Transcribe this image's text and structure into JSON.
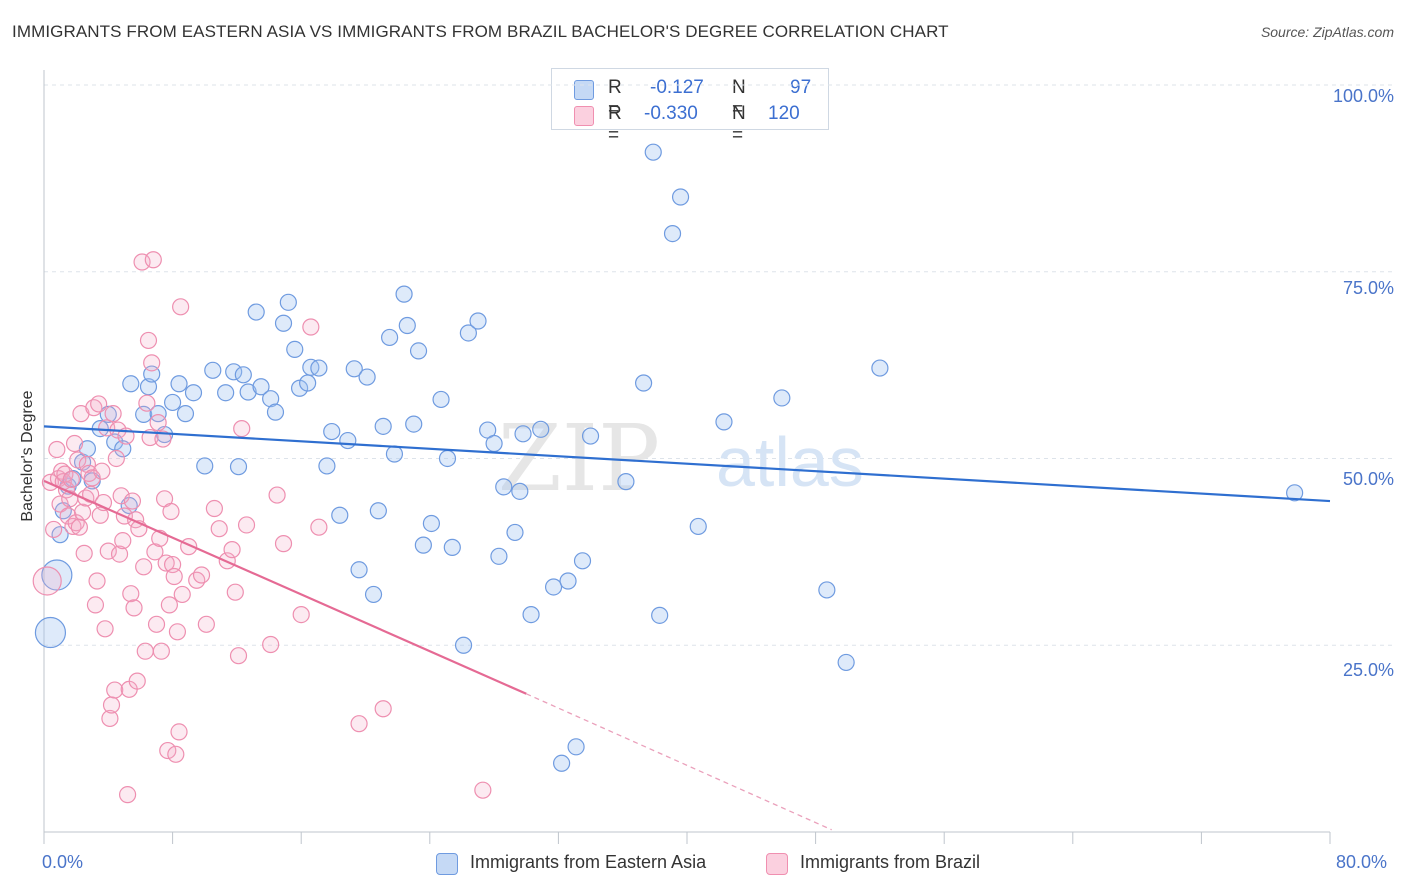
{
  "title": "IMMIGRANTS FROM EASTERN ASIA VS IMMIGRANTS FROM BRAZIL BACHELOR'S DEGREE CORRELATION CHART",
  "source": "Source: ZipAtlas.com",
  "watermark": {
    "zip": "ZIP",
    "atlas": "atlas"
  },
  "legend": {
    "rows": [
      {
        "r_label": "R =",
        "r_value": "-0.127",
        "n_label": "N =",
        "n_value": "97",
        "color": "#6f9be0"
      },
      {
        "r_label": "R =",
        "r_value": "-0.330",
        "n_label": "N =",
        "n_value": "120",
        "color": "#f08fb0"
      }
    ]
  },
  "bottom_legend": [
    "Immigrants from Eastern Asia",
    "Immigrants from Brazil"
  ],
  "chart_data": {
    "type": "scatter",
    "title": "IMMIGRANTS FROM EASTERN ASIA VS IMMIGRANTS FROM BRAZIL BACHELOR'S DEGREE CORRELATION CHART",
    "xlabel": "",
    "ylabel": "Bachelor's Degree",
    "xlim": [
      0,
      80
    ],
    "ylim": [
      0,
      102
    ],
    "x_tick_labels": [
      "0.0%",
      "80.0%"
    ],
    "y_tick_labels": [
      "100.0%",
      "75.0%",
      "50.0%",
      "25.0%"
    ],
    "y_ticks": [
      100,
      75,
      50,
      25
    ],
    "grid": true,
    "legend_position": "top-center",
    "colors": {
      "eastern_asia": "#4a7fd4",
      "brazil": "#e8729c"
    },
    "series": [
      {
        "name": "Immigrants from Eastern Asia",
        "trend": {
          "x0": 0.0,
          "y0": 54.3,
          "x1": 80.0,
          "y1": 44.3
        },
        "points": [
          [
            0.4,
            26.7
          ],
          [
            0.8,
            34.4
          ],
          [
            1.0,
            39.8
          ],
          [
            1.2,
            43.0
          ],
          [
            1.5,
            46.3
          ],
          [
            1.8,
            47.3
          ],
          [
            2.4,
            49.5
          ],
          [
            2.7,
            51.3
          ],
          [
            3.0,
            47.0
          ],
          [
            3.5,
            54.0
          ],
          [
            4.0,
            55.9
          ],
          [
            4.4,
            52.2
          ],
          [
            4.9,
            51.3
          ],
          [
            5.3,
            43.7
          ],
          [
            5.4,
            60.0
          ],
          [
            6.2,
            55.9
          ],
          [
            6.5,
            59.6
          ],
          [
            6.7,
            61.3
          ],
          [
            7.1,
            56.0
          ],
          [
            7.5,
            53.2
          ],
          [
            8.0,
            57.5
          ],
          [
            8.4,
            60.0
          ],
          [
            8.8,
            56.0
          ],
          [
            9.3,
            58.8
          ],
          [
            10.0,
            49.0
          ],
          [
            10.5,
            61.8
          ],
          [
            11.3,
            58.8
          ],
          [
            11.8,
            61.6
          ],
          [
            12.1,
            48.9
          ],
          [
            12.4,
            61.2
          ],
          [
            12.7,
            58.9
          ],
          [
            13.2,
            69.6
          ],
          [
            13.5,
            59.6
          ],
          [
            14.1,
            58.0
          ],
          [
            14.4,
            56.2
          ],
          [
            14.9,
            68.1
          ],
          [
            15.2,
            70.9
          ],
          [
            15.6,
            64.6
          ],
          [
            15.9,
            59.4
          ],
          [
            16.4,
            60.1
          ],
          [
            16.6,
            62.2
          ],
          [
            17.1,
            62.1
          ],
          [
            17.6,
            49.0
          ],
          [
            17.9,
            53.6
          ],
          [
            18.4,
            42.4
          ],
          [
            18.9,
            52.4
          ],
          [
            19.3,
            62.0
          ],
          [
            19.6,
            35.1
          ],
          [
            20.1,
            60.9
          ],
          [
            20.5,
            31.8
          ],
          [
            20.8,
            43.0
          ],
          [
            21.1,
            54.3
          ],
          [
            21.5,
            66.2
          ],
          [
            21.8,
            50.6
          ],
          [
            22.4,
            72.0
          ],
          [
            22.6,
            67.8
          ],
          [
            23.0,
            54.6
          ],
          [
            23.3,
            64.4
          ],
          [
            23.6,
            38.4
          ],
          [
            24.1,
            41.3
          ],
          [
            24.7,
            57.9
          ],
          [
            25.1,
            50.0
          ],
          [
            25.4,
            38.1
          ],
          [
            26.1,
            25.0
          ],
          [
            26.4,
            66.8
          ],
          [
            27.0,
            68.4
          ],
          [
            27.6,
            53.8
          ],
          [
            28.0,
            52.0
          ],
          [
            28.3,
            36.9
          ],
          [
            28.6,
            46.2
          ],
          [
            29.3,
            40.1
          ],
          [
            29.6,
            45.6
          ],
          [
            29.8,
            53.3
          ],
          [
            30.3,
            29.1
          ],
          [
            30.9,
            53.9
          ],
          [
            31.7,
            32.8
          ],
          [
            32.2,
            9.2
          ],
          [
            32.6,
            33.6
          ],
          [
            33.1,
            11.4
          ],
          [
            33.5,
            36.3
          ],
          [
            34.0,
            53.0
          ],
          [
            36.2,
            46.9
          ],
          [
            37.3,
            60.1
          ],
          [
            37.9,
            91.0
          ],
          [
            38.3,
            29.0
          ],
          [
            39.1,
            80.1
          ],
          [
            39.6,
            85.0
          ],
          [
            40.7,
            40.9
          ],
          [
            42.3,
            54.9
          ],
          [
            45.9,
            58.1
          ],
          [
            48.7,
            32.4
          ],
          [
            49.9,
            22.7
          ],
          [
            52.0,
            62.1
          ],
          [
            77.8,
            45.4
          ]
        ]
      },
      {
        "name": "Immigrants from Brazil",
        "trend": {
          "x0": 0.0,
          "y0": 47.0,
          "x1": 30.0,
          "y1": 18.5,
          "dash_to_x": 49.0,
          "dash_to_y": 0.3
        },
        "points": [
          [
            0.2,
            33.6
          ],
          [
            0.4,
            46.8
          ],
          [
            0.6,
            40.5
          ],
          [
            0.8,
            51.2
          ],
          [
            0.9,
            47.3
          ],
          [
            1.0,
            43.9
          ],
          [
            1.1,
            48.3
          ],
          [
            1.2,
            46.9
          ],
          [
            1.3,
            47.9
          ],
          [
            1.4,
            45.8
          ],
          [
            1.5,
            42.3
          ],
          [
            1.6,
            44.6
          ],
          [
            1.7,
            47.2
          ],
          [
            1.8,
            40.9
          ],
          [
            1.9,
            52.0
          ],
          [
            2.0,
            41.4
          ],
          [
            2.1,
            49.8
          ],
          [
            2.2,
            40.8
          ],
          [
            2.3,
            56.0
          ],
          [
            2.4,
            42.8
          ],
          [
            2.5,
            37.3
          ],
          [
            2.6,
            44.7
          ],
          [
            2.7,
            49.2
          ],
          [
            2.8,
            48.0
          ],
          [
            2.9,
            45.2
          ],
          [
            3.0,
            47.4
          ],
          [
            3.1,
            56.8
          ],
          [
            3.2,
            30.4
          ],
          [
            3.3,
            33.6
          ],
          [
            3.4,
            57.3
          ],
          [
            3.5,
            42.4
          ],
          [
            3.6,
            48.3
          ],
          [
            3.7,
            44.1
          ],
          [
            3.8,
            27.2
          ],
          [
            3.9,
            54.1
          ],
          [
            4.0,
            37.6
          ],
          [
            4.1,
            15.2
          ],
          [
            4.2,
            17.0
          ],
          [
            4.3,
            56.0
          ],
          [
            4.4,
            19.0
          ],
          [
            4.5,
            50.0
          ],
          [
            4.6,
            53.8
          ],
          [
            4.7,
            37.2
          ],
          [
            4.8,
            45.0
          ],
          [
            4.9,
            39.0
          ],
          [
            5.0,
            42.3
          ],
          [
            5.1,
            53.0
          ],
          [
            5.2,
            5.0
          ],
          [
            5.3,
            19.1
          ],
          [
            5.4,
            31.9
          ],
          [
            5.5,
            44.3
          ],
          [
            5.6,
            30.0
          ],
          [
            5.7,
            41.8
          ],
          [
            5.8,
            20.2
          ],
          [
            5.9,
            40.6
          ],
          [
            6.1,
            76.3
          ],
          [
            6.2,
            35.5
          ],
          [
            6.3,
            24.2
          ],
          [
            6.4,
            57.4
          ],
          [
            6.5,
            65.8
          ],
          [
            6.6,
            52.8
          ],
          [
            6.7,
            62.8
          ],
          [
            6.8,
            76.6
          ],
          [
            6.9,
            37.5
          ],
          [
            7.0,
            27.8
          ],
          [
            7.1,
            54.8
          ],
          [
            7.2,
            39.3
          ],
          [
            7.3,
            24.2
          ],
          [
            7.4,
            52.6
          ],
          [
            7.5,
            44.6
          ],
          [
            7.6,
            36.0
          ],
          [
            7.7,
            10.9
          ],
          [
            7.8,
            30.4
          ],
          [
            7.9,
            42.9
          ],
          [
            8.0,
            35.8
          ],
          [
            8.1,
            34.2
          ],
          [
            8.2,
            10.4
          ],
          [
            8.3,
            26.8
          ],
          [
            8.4,
            13.4
          ],
          [
            8.5,
            70.3
          ],
          [
            8.6,
            31.8
          ],
          [
            9.0,
            38.2
          ],
          [
            9.5,
            33.7
          ],
          [
            9.8,
            34.4
          ],
          [
            10.1,
            27.8
          ],
          [
            10.6,
            43.3
          ],
          [
            10.9,
            40.6
          ],
          [
            11.4,
            36.3
          ],
          [
            11.7,
            37.8
          ],
          [
            11.9,
            32.1
          ],
          [
            12.1,
            23.6
          ],
          [
            12.3,
            54.0
          ],
          [
            12.6,
            41.1
          ],
          [
            14.1,
            25.1
          ],
          [
            14.5,
            45.1
          ],
          [
            14.9,
            38.6
          ],
          [
            16.0,
            29.1
          ],
          [
            16.6,
            67.6
          ],
          [
            17.1,
            40.8
          ],
          [
            19.6,
            14.5
          ],
          [
            21.1,
            16.5
          ],
          [
            27.3,
            5.6
          ]
        ]
      }
    ]
  }
}
